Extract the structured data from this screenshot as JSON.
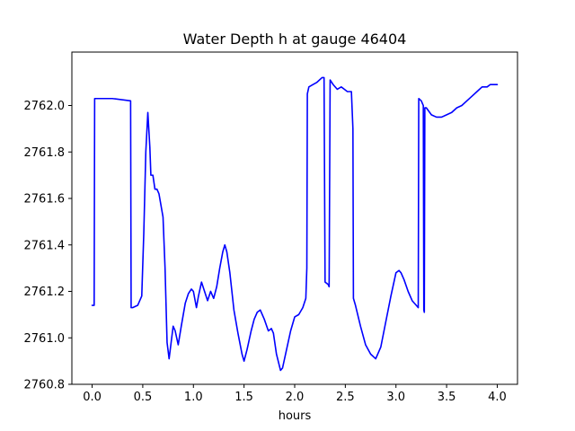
{
  "chart_data": {
    "type": "line",
    "title": "Water Depth h at gauge 46404",
    "xlabel": "hours",
    "ylabel": "",
    "xlim": [
      -0.2,
      4.2
    ],
    "ylim": [
      2760.8,
      2762.23
    ],
    "xticks": [
      0.0,
      0.5,
      1.0,
      1.5,
      2.0,
      2.5,
      3.0,
      3.5,
      4.0
    ],
    "xtick_labels": [
      "0.0",
      "0.5",
      "1.0",
      "1.5",
      "2.0",
      "2.5",
      "3.0",
      "3.5",
      "4.0"
    ],
    "yticks": [
      2760.8,
      2761.0,
      2761.2,
      2761.4,
      2761.6,
      2761.8,
      2762.0
    ],
    "ytick_labels": [
      "2760.8",
      "2761.0",
      "2761.2",
      "2761.4",
      "2761.6",
      "2761.8",
      "2762.0"
    ],
    "grid": false,
    "series": [
      {
        "color": "#0000ff",
        "x": [
          0.0,
          0.02,
          0.025,
          0.05,
          0.2,
          0.38,
          0.385,
          0.4,
          0.45,
          0.49,
          0.51,
          0.53,
          0.55,
          0.57,
          0.58,
          0.6,
          0.62,
          0.64,
          0.66,
          0.7,
          0.72,
          0.74,
          0.76,
          0.78,
          0.8,
          0.82,
          0.85,
          0.88,
          0.92,
          0.95,
          0.98,
          1.0,
          1.03,
          1.05,
          1.08,
          1.11,
          1.14,
          1.17,
          1.2,
          1.23,
          1.26,
          1.29,
          1.31,
          1.33,
          1.36,
          1.4,
          1.44,
          1.48,
          1.5,
          1.53,
          1.57,
          1.6,
          1.63,
          1.66,
          1.7,
          1.74,
          1.77,
          1.79,
          1.82,
          1.86,
          1.88,
          1.92,
          1.96,
          2.0,
          2.04,
          2.08,
          2.11,
          2.12,
          2.125,
          2.14,
          2.18,
          2.22,
          2.27,
          2.29,
          2.3,
          2.33,
          2.34,
          2.35,
          2.38,
          2.42,
          2.46,
          2.49,
          2.52,
          2.56,
          2.575,
          2.58,
          2.6,
          2.65,
          2.7,
          2.75,
          2.8,
          2.85,
          2.9,
          2.95,
          3.0,
          3.03,
          3.05,
          3.08,
          3.12,
          3.16,
          3.2,
          3.22,
          3.225,
          3.25,
          3.27,
          3.275,
          3.28,
          3.285,
          3.3,
          3.35,
          3.4,
          3.45,
          3.5,
          3.55,
          3.6,
          3.65,
          3.7,
          3.75,
          3.8,
          3.85,
          3.9,
          3.93,
          3.96,
          4.0
        ],
        "y": [
          2761.14,
          2761.14,
          2762.03,
          2762.03,
          2762.03,
          2762.02,
          2761.13,
          2761.13,
          2761.14,
          2761.18,
          2761.45,
          2761.8,
          2761.97,
          2761.82,
          2761.7,
          2761.7,
          2761.64,
          2761.64,
          2761.62,
          2761.52,
          2761.3,
          2760.98,
          2760.91,
          2760.98,
          2761.05,
          2761.03,
          2760.97,
          2761.05,
          2761.15,
          2761.19,
          2761.21,
          2761.2,
          2761.13,
          2761.18,
          2761.24,
          2761.2,
          2761.16,
          2761.2,
          2761.17,
          2761.22,
          2761.3,
          2761.37,
          2761.4,
          2761.37,
          2761.28,
          2761.12,
          2761.02,
          2760.93,
          2760.9,
          2760.95,
          2761.03,
          2761.08,
          2761.11,
          2761.12,
          2761.08,
          2761.03,
          2761.04,
          2761.02,
          2760.93,
          2760.86,
          2760.87,
          2760.95,
          2761.03,
          2761.09,
          2761.1,
          2761.13,
          2761.17,
          2761.3,
          2762.05,
          2762.08,
          2762.09,
          2762.1,
          2762.12,
          2762.12,
          2761.24,
          2761.23,
          2761.22,
          2762.11,
          2762.09,
          2762.07,
          2762.08,
          2762.07,
          2762.06,
          2762.06,
          2761.9,
          2761.17,
          2761.14,
          2761.05,
          2760.97,
          2760.93,
          2760.91,
          2760.96,
          2761.07,
          2761.18,
          2761.28,
          2761.29,
          2761.28,
          2761.25,
          2761.2,
          2761.16,
          2761.14,
          2761.13,
          2762.03,
          2762.02,
          2762.0,
          2761.12,
          2761.11,
          2761.99,
          2761.99,
          2761.96,
          2761.95,
          2761.95,
          2761.96,
          2761.97,
          2761.99,
          2762.0,
          2762.02,
          2762.04,
          2762.06,
          2762.08,
          2762.08,
          2762.09,
          2762.09,
          2762.09
        ]
      }
    ]
  }
}
